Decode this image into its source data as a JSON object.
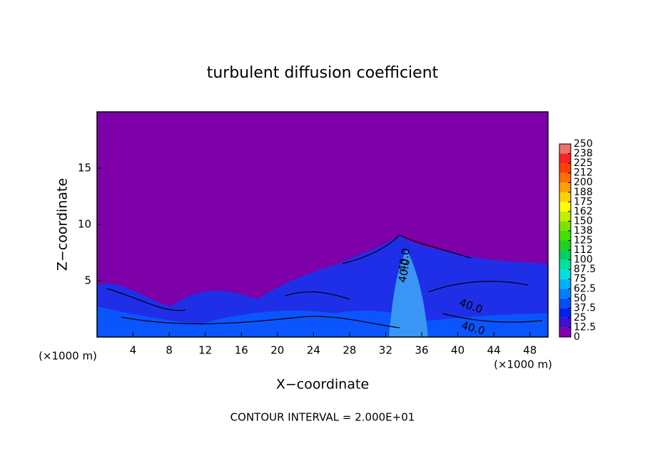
{
  "chart_data": {
    "type": "contour",
    "title": "turbulent diffusion coefficient",
    "xlabel": "X−coordinate",
    "ylabel": "Z−coordinate",
    "x_unit_label": "(×1000 m)",
    "y_unit_label": "(×1000 m)",
    "footer": "CONTOUR INTERVAL = 2.000E+01",
    "xlim": [
      0,
      50
    ],
    "xticks": [
      4,
      8,
      12,
      16,
      20,
      24,
      28,
      32,
      36,
      40,
      44,
      48
    ],
    "ylim": [
      0,
      20
    ],
    "yticks": [
      5,
      10,
      15
    ],
    "contour_labels": [
      "40.0",
      "40.0",
      "40.0",
      "40.0"
    ],
    "colorbar": {
      "lim": [
        0,
        250
      ],
      "ticks": [
        0,
        12.5,
        25,
        37.5,
        50,
        62.5,
        75,
        87.5,
        100,
        {
          "value": 112.5,
          "label": "112"
        },
        125,
        {
          "value": 137.5,
          "label": "138"
        },
        150,
        {
          "value": 162.5,
          "label": "162"
        },
        175,
        {
          "value": 187.5,
          "label": "188"
        },
        200,
        {
          "value": 212.5,
          "label": "212"
        },
        225,
        {
          "value": 237.5,
          "label": "238"
        },
        250
      ],
      "colors": [
        "#8000b0",
        "#4010d0",
        "#0020f0",
        "#0050ff",
        "#0080ff",
        "#00b0ff",
        "#00e0e0",
        "#00e0a0",
        "#00d060",
        "#20d020",
        "#40e000",
        "#80e000",
        "#c0f000",
        "#ffff00",
        "#ffd000",
        "#ffa000",
        "#ff7000",
        "#ff4000",
        "#ff2020",
        "#f07070"
      ]
    }
  }
}
